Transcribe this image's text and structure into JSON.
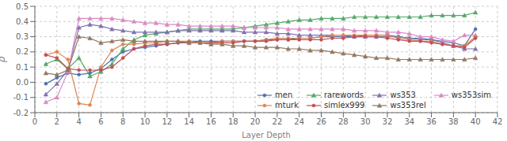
{
  "chart_data": {
    "type": "line",
    "title": "",
    "xlabel": "Layer Depth",
    "ylabel": "ρ",
    "xlim": [
      0,
      42
    ],
    "ylim": [
      -0.2,
      0.5
    ],
    "xticks": [
      0,
      2,
      4,
      6,
      8,
      10,
      12,
      14,
      16,
      18,
      20,
      22,
      24,
      26,
      28,
      30,
      32,
      34,
      36,
      38,
      40,
      42
    ],
    "yticks": [
      -0.2,
      -0.1,
      {
        "value": 0,
        "label": "0.0"
      },
      0.1,
      0.2,
      0.3,
      0.4,
      0.5
    ],
    "grid": true,
    "legend": "lower right",
    "x": [
      1,
      2,
      3,
      4,
      5,
      6,
      7,
      8,
      9,
      10,
      11,
      12,
      13,
      14,
      15,
      16,
      17,
      18,
      19,
      20,
      21,
      22,
      23,
      24,
      25,
      26,
      27,
      28,
      29,
      30,
      31,
      32,
      33,
      34,
      35,
      36,
      37,
      38,
      39,
      40
    ],
    "series": [
      {
        "name": "men",
        "color": "#4c72b0",
        "marker": "circle",
        "values": [
          -0.01,
          0.03,
          0.06,
          0.05,
          0.06,
          0.09,
          0.15,
          0.2,
          0.22,
          0.23,
          0.24,
          0.25,
          0.26,
          0.27,
          0.27,
          0.27,
          0.27,
          0.27,
          0.27,
          0.27,
          0.28,
          0.28,
          0.28,
          0.29,
          0.29,
          0.3,
          0.3,
          0.3,
          0.3,
          0.31,
          0.31,
          0.31,
          0.3,
          0.29,
          0.29,
          0.28,
          0.27,
          0.26,
          0.24,
          0.35
        ]
      },
      {
        "name": "rarewords",
        "color": "#55a868",
        "marker": "triangle",
        "values": [
          0.12,
          0.15,
          0.09,
          0.16,
          0.04,
          0.07,
          0.12,
          0.22,
          0.28,
          0.31,
          0.32,
          0.33,
          0.34,
          0.35,
          0.35,
          0.35,
          0.35,
          0.35,
          0.36,
          0.37,
          0.38,
          0.39,
          0.4,
          0.41,
          0.41,
          0.42,
          0.42,
          0.42,
          0.43,
          0.43,
          0.43,
          0.43,
          0.43,
          0.43,
          0.43,
          0.44,
          0.44,
          0.44,
          0.44,
          0.46
        ]
      },
      {
        "name": "ws353",
        "color": "#8172b2",
        "marker": "triangle",
        "values": [
          -0.08,
          -0.01,
          0.08,
          0.36,
          0.38,
          0.37,
          0.35,
          0.34,
          0.33,
          0.33,
          0.33,
          0.33,
          0.34,
          0.34,
          0.34,
          0.34,
          0.34,
          0.34,
          0.33,
          0.33,
          0.33,
          0.32,
          0.32,
          0.31,
          0.31,
          0.31,
          0.31,
          0.31,
          0.3,
          0.3,
          0.3,
          0.3,
          0.3,
          0.29,
          0.28,
          0.28,
          0.26,
          0.24,
          0.22,
          0.22
        ]
      },
      {
        "name": "ws353sim",
        "color": "#da8bc3",
        "marker": "triangle",
        "values": [
          -0.13,
          -0.1,
          0.07,
          0.42,
          0.42,
          0.42,
          0.42,
          0.41,
          0.4,
          0.39,
          0.39,
          0.38,
          0.38,
          0.37,
          0.37,
          0.37,
          0.37,
          0.37,
          0.36,
          0.36,
          0.36,
          0.36,
          0.35,
          0.35,
          0.35,
          0.35,
          0.35,
          0.35,
          0.34,
          0.34,
          0.34,
          0.33,
          0.33,
          0.32,
          0.3,
          0.3,
          0.28,
          0.27,
          0.31,
          0.31
        ]
      },
      {
        "name": "mturk",
        "color": "#dd8452",
        "marker": "circle",
        "values": [
          0.18,
          0.2,
          0.15,
          -0.14,
          -0.15,
          0.1,
          0.21,
          0.25,
          0.25,
          0.26,
          0.26,
          0.27,
          0.27,
          0.27,
          0.26,
          0.26,
          0.27,
          0.27,
          0.27,
          0.27,
          0.28,
          0.29,
          0.29,
          0.29,
          0.29,
          0.3,
          0.31,
          0.31,
          0.31,
          0.31,
          0.31,
          0.31,
          0.29,
          0.28,
          0.27,
          0.27,
          0.25,
          0.24,
          0.24,
          0.3
        ]
      },
      {
        "name": "simlex999",
        "color": "#c44e52",
        "marker": "circle",
        "values": [
          0.18,
          0.16,
          0.09,
          0.08,
          0.08,
          0.08,
          0.1,
          0.16,
          0.22,
          0.24,
          0.25,
          0.25,
          0.26,
          0.26,
          0.26,
          0.26,
          0.26,
          0.26,
          0.27,
          0.27,
          0.27,
          0.28,
          0.28,
          0.28,
          0.28,
          0.28,
          0.29,
          0.29,
          0.3,
          0.3,
          0.3,
          0.29,
          0.28,
          0.27,
          0.27,
          0.26,
          0.25,
          0.24,
          0.23,
          0.29
        ]
      },
      {
        "name": "ws353rel",
        "color": "#937860",
        "marker": "triangle",
        "values": [
          0.06,
          0.05,
          0.08,
          0.3,
          0.29,
          0.26,
          0.27,
          0.28,
          0.27,
          0.27,
          0.27,
          0.27,
          0.27,
          0.26,
          0.26,
          0.25,
          0.25,
          0.24,
          0.24,
          0.23,
          0.23,
          0.23,
          0.22,
          0.22,
          0.21,
          0.21,
          0.2,
          0.19,
          0.18,
          0.17,
          0.16,
          0.16,
          0.15,
          0.15,
          0.15,
          0.15,
          0.15,
          0.15,
          0.15,
          0.16
        ]
      }
    ]
  }
}
